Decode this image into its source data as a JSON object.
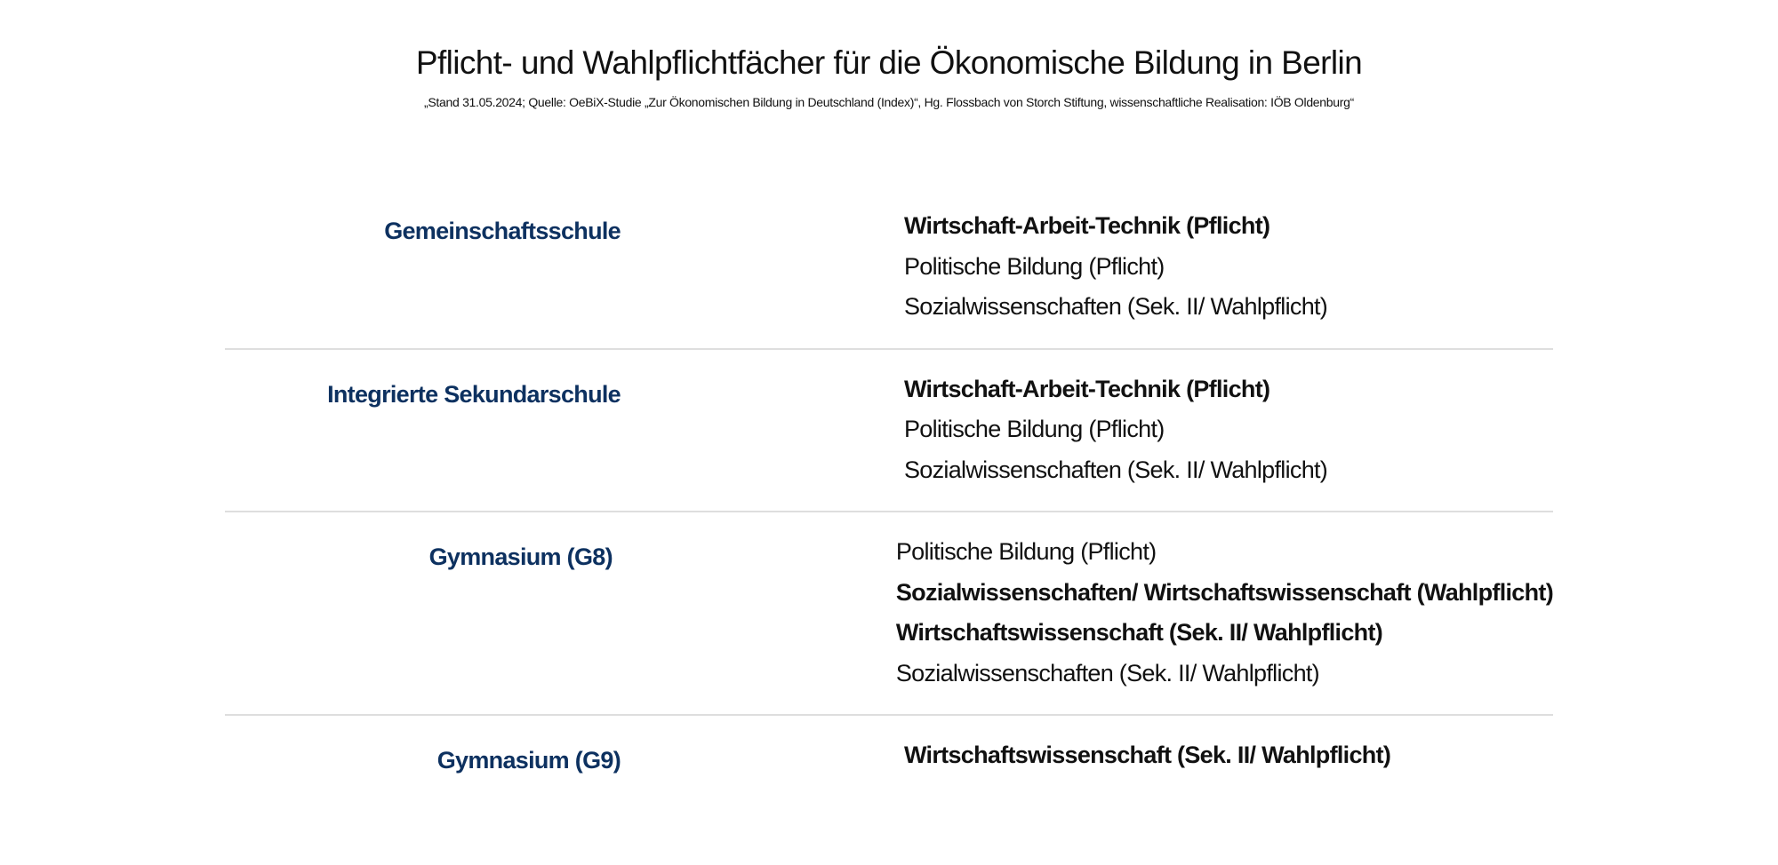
{
  "title": "Pflicht- und Wahlpflichtfächer für die Ökonomische Bildung in Berlin",
  "subtitle": "„Stand 31.05.2024; Quelle: OeBiX-Studie „Zur Ökonomischen Bildung in Deutschland (Index)“, Hg. Flossbach von Storch Stiftung, wissenschaftliche Realisation: IÖB Oldenburg“",
  "colors": {
    "label": "#0d3160",
    "text": "#111111",
    "divider": "#dedede"
  },
  "sections": [
    {
      "school": "Gemeinschaftsschule",
      "subjects": [
        {
          "text": "Wirtschaft-Arbeit-Technik (Pflicht)",
          "bold": true
        },
        {
          "text": "Politische Bildung (Pflicht)",
          "bold": false
        },
        {
          "text": "Sozialwissenschaften (Sek. II/ Wahlpflicht)",
          "bold": false
        }
      ]
    },
    {
      "school": "Integrierte Sekundarschule",
      "subjects": [
        {
          "text": "Wirtschaft-Arbeit-Technik (Pflicht)",
          "bold": true
        },
        {
          "text": "Politische Bildung (Pflicht)",
          "bold": false
        },
        {
          "text": "Sozialwissenschaften (Sek. II/ Wahlpflicht)",
          "bold": false
        }
      ]
    },
    {
      "school": "Gymnasium (G8)",
      "subjects": [
        {
          "text": "Politische Bildung (Pflicht)",
          "bold": false
        },
        {
          "text": "Sozialwissenschaften/ Wirtschaftswissenschaft (Wahlpflicht)",
          "bold": true
        },
        {
          "text": "Wirtschaftswissenschaft (Sek. II/ Wahlpflicht)",
          "bold": true
        },
        {
          "text": "Sozialwissenschaften (Sek. II/ Wahlpflicht)",
          "bold": false
        }
      ]
    },
    {
      "school": "Gymnasium (G9)",
      "subjects": [
        {
          "text": "Wirtschaftswissenschaft (Sek. II/ Wahlpflicht)",
          "bold": true
        }
      ]
    }
  ]
}
